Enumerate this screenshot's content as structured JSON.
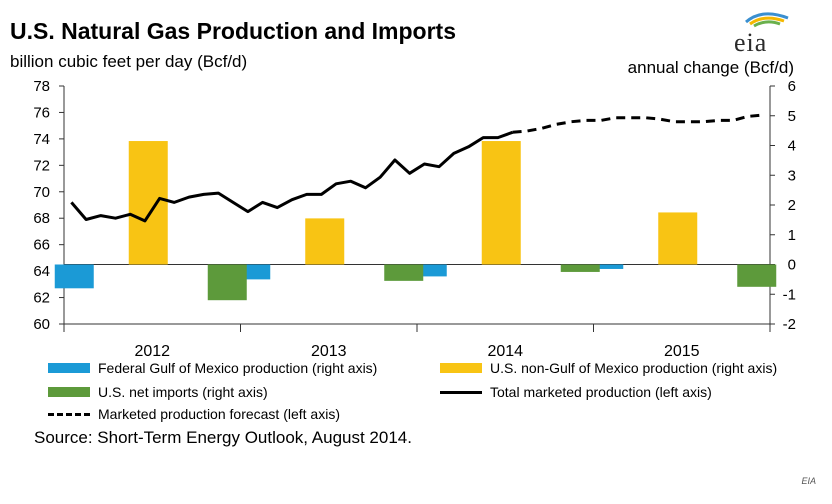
{
  "title": "U.S. Natural Gas Production and Imports",
  "left_unit": "billion cubic feet per day (Bcf/d)",
  "right_unit": "annual change (Bcf/d)",
  "logo_text": "eia",
  "source": "Source: Short-Term Energy Outlook, August 2014.",
  "credit": "EIA",
  "colors": {
    "gom": "#1b9ad6",
    "non_gom": "#f8c414",
    "imports": "#5d9a3b",
    "line": "#000000"
  },
  "chart_data": {
    "type": "bar",
    "categories": [
      "2012",
      "2013",
      "2014",
      "2015"
    ],
    "left_axis": {
      "label": "billion cubic feet per day (Bcf/d)",
      "ylim": [
        60,
        78
      ],
      "ticks": [
        60,
        62,
        64,
        66,
        68,
        70,
        72,
        74,
        76,
        78
      ]
    },
    "right_axis": {
      "label": "annual change (Bcf/d)",
      "ylim": [
        -2,
        6
      ],
      "ticks": [
        -2,
        -1,
        0,
        1,
        2,
        3,
        4,
        5,
        6
      ]
    },
    "bar_series": [
      {
        "name": "Federal Gulf of Mexico production (right axis)",
        "values": [
          -0.8,
          -0.5,
          -0.4,
          -0.15
        ]
      },
      {
        "name": "U.S. non-Gulf of Mexico production (right axis)",
        "values": [
          4.15,
          1.55,
          4.15,
          1.75
        ]
      },
      {
        "name": "U.S. net imports (right axis)",
        "values": [
          -1.2,
          -0.55,
          -0.25,
          -0.75
        ]
      }
    ],
    "line_series": [
      {
        "name": "Total marketed production (left axis)",
        "x": [
          "2012-01",
          "2012-02",
          "2012-03",
          "2012-04",
          "2012-05",
          "2012-06",
          "2012-07",
          "2012-08",
          "2012-09",
          "2012-10",
          "2012-11",
          "2012-12",
          "2013-01",
          "2013-02",
          "2013-03",
          "2013-04",
          "2013-05",
          "2013-06",
          "2013-07",
          "2013-08",
          "2013-09",
          "2013-10",
          "2013-11",
          "2013-12",
          "2014-01",
          "2014-02",
          "2014-03",
          "2014-04",
          "2014-05",
          "2014-06",
          "2014-07"
        ],
        "values": [
          69.2,
          67.9,
          68.2,
          68.0,
          68.3,
          67.8,
          69.5,
          69.2,
          69.6,
          69.8,
          69.9,
          69.2,
          68.5,
          69.2,
          68.8,
          69.4,
          69.8,
          69.8,
          70.6,
          70.8,
          70.3,
          71.1,
          72.4,
          71.4,
          72.1,
          71.9,
          72.9,
          73.4,
          74.1,
          74.1,
          74.5
        ]
      },
      {
        "name": "Marketed production forecast (left axis)",
        "x": [
          "2014-07",
          "2014-08",
          "2014-09",
          "2014-10",
          "2014-11",
          "2014-12",
          "2015-01",
          "2015-02",
          "2015-03",
          "2015-04",
          "2015-05",
          "2015-06",
          "2015-07",
          "2015-08",
          "2015-09",
          "2015-10",
          "2015-11",
          "2015-12"
        ],
        "values": [
          74.5,
          74.6,
          74.8,
          75.1,
          75.3,
          75.4,
          75.4,
          75.6,
          75.6,
          75.6,
          75.5,
          75.3,
          75.3,
          75.3,
          75.4,
          75.4,
          75.7,
          75.8
        ]
      }
    ],
    "legend": [
      {
        "label": "Federal Gulf of Mexico production (right axis)",
        "marker": "bar",
        "color": "#1b9ad6"
      },
      {
        "label": "U.S. non-Gulf of Mexico production (right axis)",
        "marker": "bar",
        "color": "#f8c414"
      },
      {
        "label": "U.S. net imports (right axis)",
        "marker": "bar",
        "color": "#5d9a3b"
      },
      {
        "label": "Total marketed production (left axis)",
        "marker": "solid-line",
        "color": "#000000"
      },
      {
        "label": "Marketed production forecast (left axis)",
        "marker": "dashed-line",
        "color": "#000000"
      }
    ],
    "legend_position": "bottom",
    "grid": false
  }
}
